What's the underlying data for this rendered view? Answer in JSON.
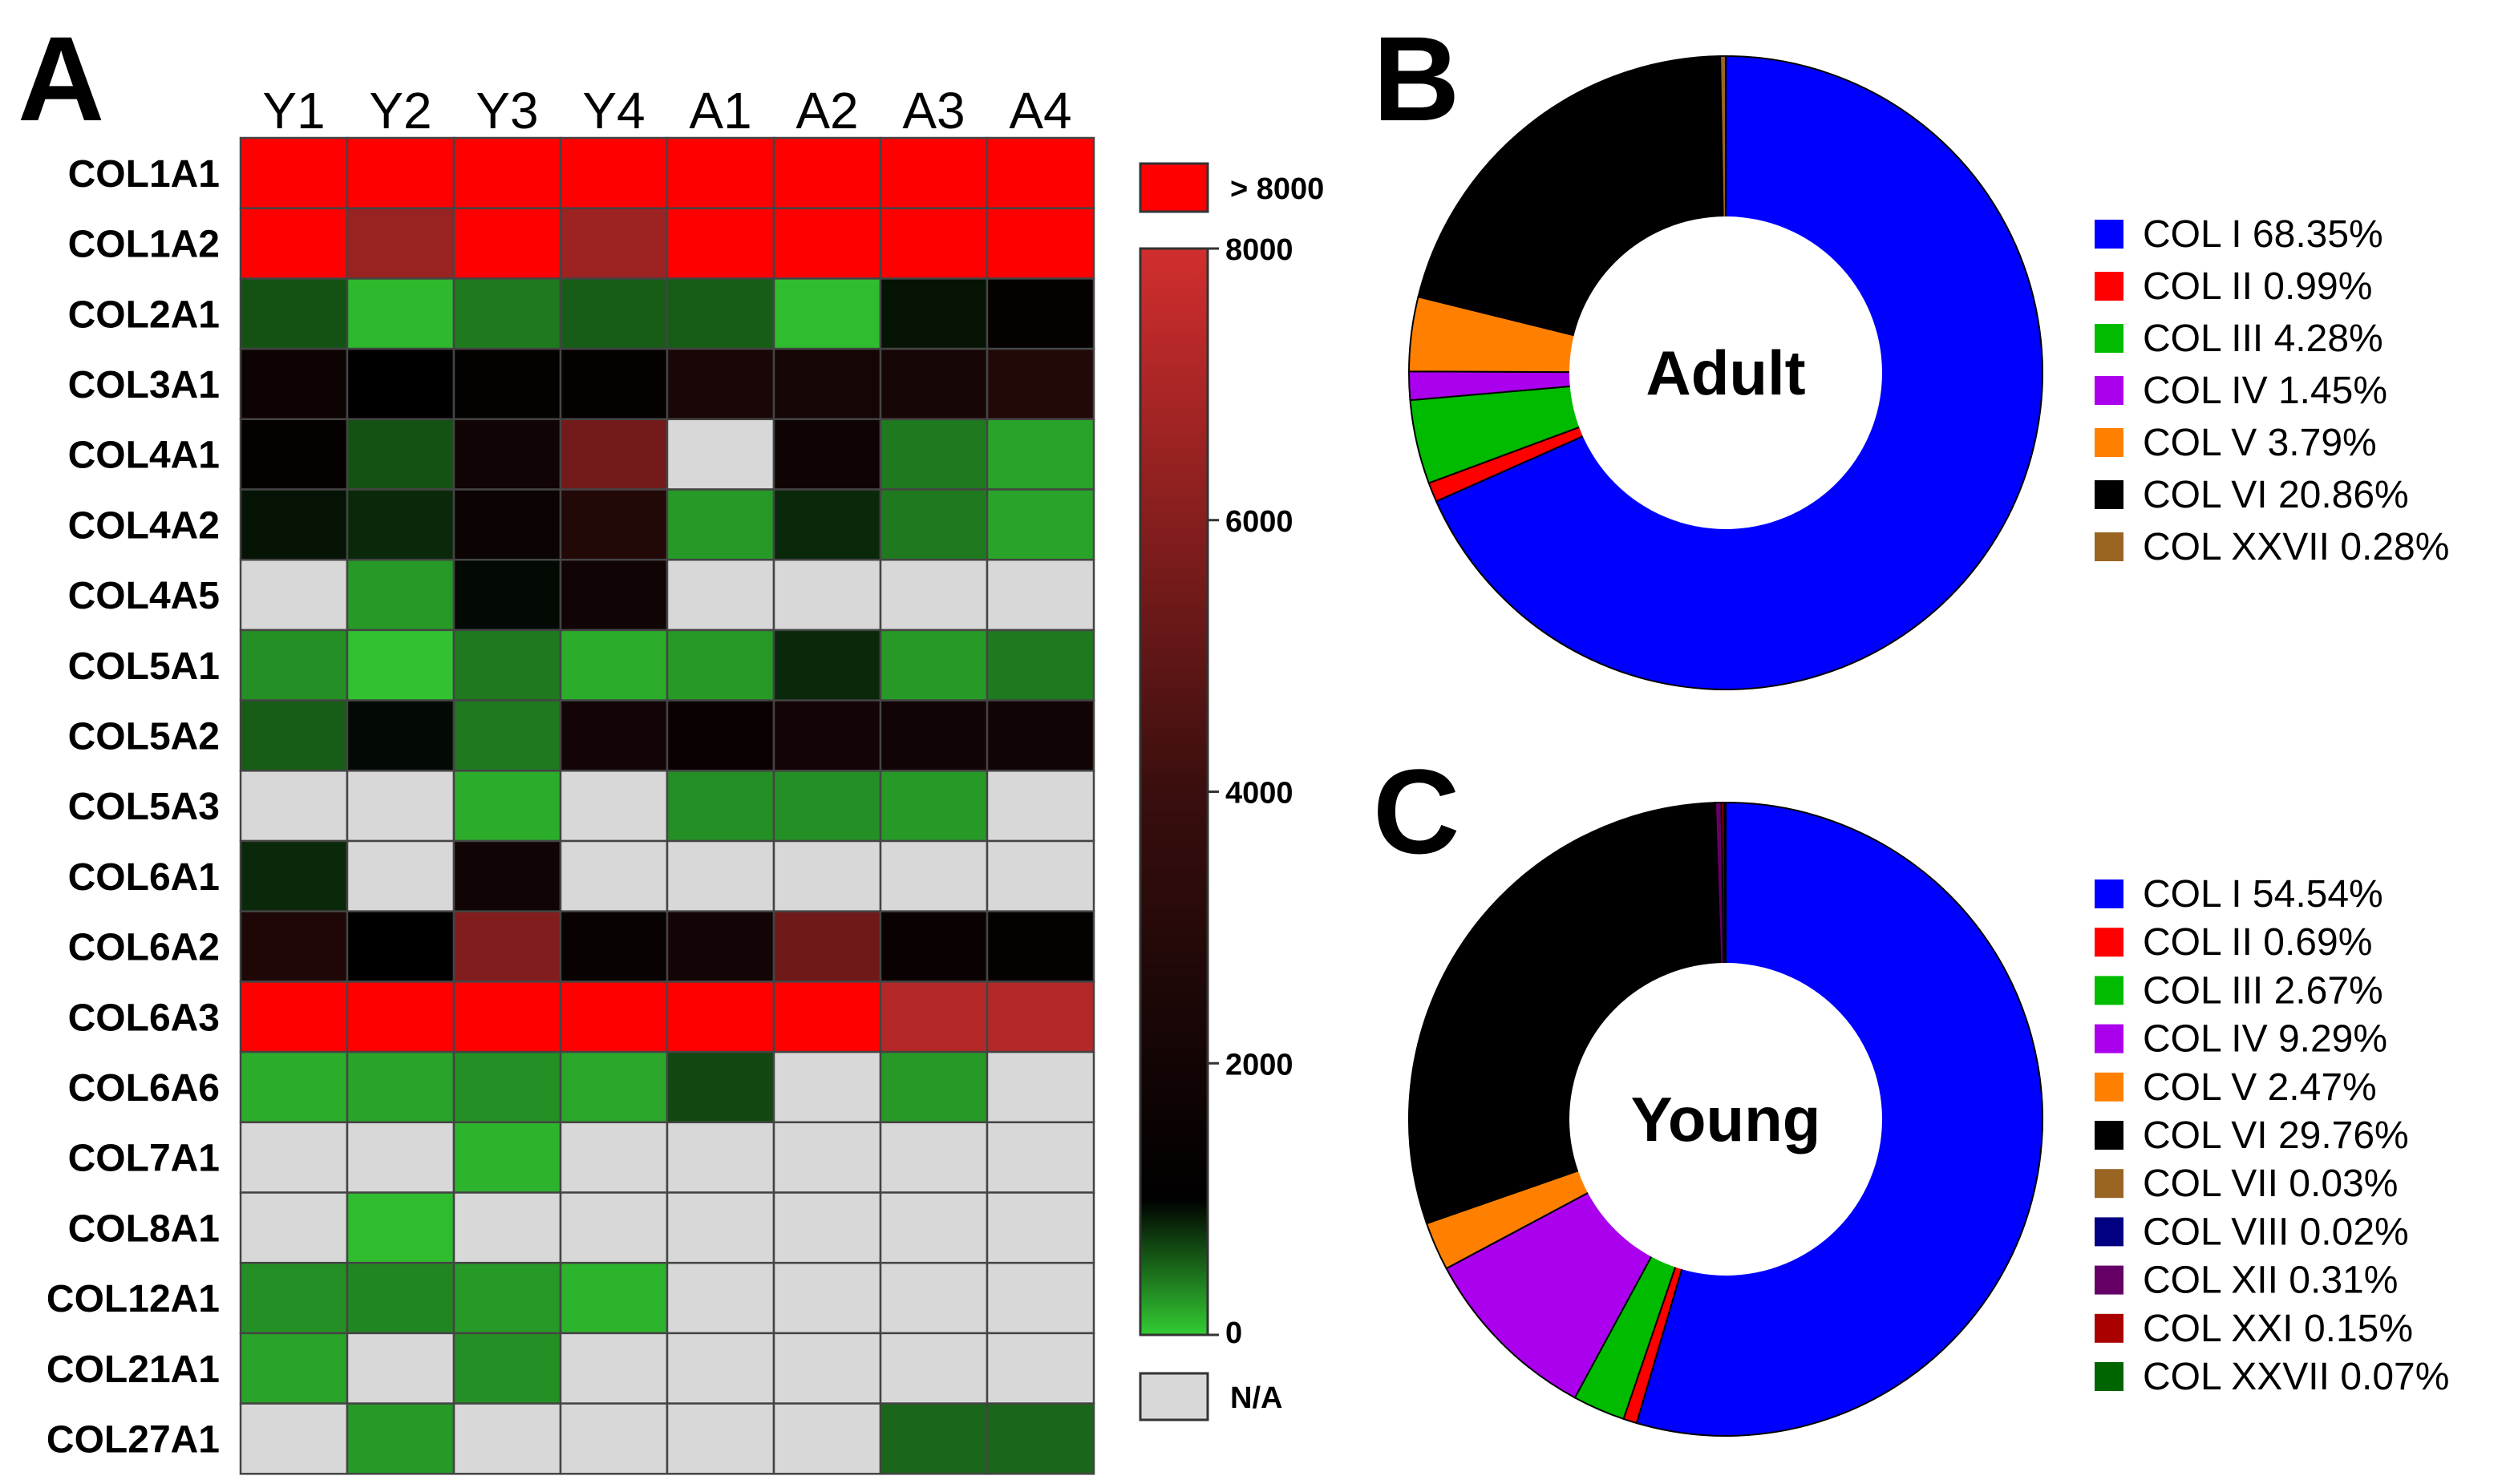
{
  "panels": {
    "a": "A",
    "b": "B",
    "c": "C"
  },
  "chart_data": [
    {
      "type": "heatmap",
      "panel": "A",
      "columns": [
        "Y1",
        "Y2",
        "Y3",
        "Y4",
        "A1",
        "A2",
        "A3",
        "A4"
      ],
      "rows": [
        "COL1A1",
        "COL1A2",
        "COL2A1",
        "COL3A1",
        "COL4A1",
        "COL4A2",
        "COL4A5",
        "COL5A1",
        "COL5A2",
        "COL5A3",
        "COL6A1",
        "COL6A2",
        "COL6A3",
        "COL6A6",
        "COL7A1",
        "COL8A1",
        "COL12A1",
        "COL21A1",
        "COL27A1"
      ],
      "values": [
        [
          9000,
          9000,
          9000,
          9000,
          9000,
          9000,
          9000,
          9000
        ],
        [
          9000,
          6500,
          9000,
          6600,
          9000,
          9000,
          9000,
          9000
        ],
        [
          600,
          100,
          400,
          550,
          550,
          80,
          900,
          1300
        ],
        [
          1700,
          1000,
          1200,
          1300,
          2300,
          2100,
          2200,
          2800
        ],
        [
          1300,
          600,
          1900,
          5500,
          null,
          1800,
          400,
          200
        ],
        [
          900,
          800,
          1600,
          2800,
          250,
          800,
          400,
          200
        ],
        [
          null,
          250,
          950,
          1900,
          null,
          null,
          null,
          null
        ],
        [
          300,
          50,
          400,
          150,
          250,
          800,
          250,
          400
        ],
        [
          550,
          950,
          400,
          2000,
          1500,
          2000,
          1900,
          1900
        ],
        [
          null,
          null,
          150,
          null,
          300,
          300,
          250,
          null
        ],
        [
          800,
          null,
          1900,
          null,
          null,
          null,
          null,
          null
        ],
        [
          2600,
          1000,
          5900,
          1400,
          2000,
          5400,
          1500,
          1200
        ],
        [
          9000,
          9000,
          9000,
          9000,
          9000,
          9000,
          7200,
          7200
        ],
        [
          150,
          200,
          300,
          180,
          650,
          null,
          250,
          null
        ],
        [
          null,
          null,
          120,
          null,
          null,
          null,
          null,
          null
        ],
        [
          null,
          80,
          null,
          null,
          null,
          null,
          null,
          null
        ],
        [
          300,
          350,
          250,
          120,
          null,
          null,
          null,
          null
        ],
        [
          200,
          null,
          300,
          null,
          null,
          null,
          null,
          null
        ],
        [
          null,
          250,
          null,
          null,
          null,
          null,
          500,
          500
        ]
      ],
      "colorbar": {
        "title_over": "> 8000",
        "ticks": [
          "8000",
          "6000",
          "4000",
          "2000",
          "0"
        ],
        "tick_values": [
          8000,
          6000,
          4000,
          2000,
          0
        ],
        "na_label": "N/A",
        "range": [
          0,
          8000
        ]
      },
      "colors": {
        "over": "#ff0000",
        "na": "#d8d8d8",
        "zero": "#33cc33",
        "mid": "#000000",
        "max": "#d22e2e",
        "grid": "#444444"
      }
    },
    {
      "type": "pie",
      "panel": "B",
      "center_label": "Adult",
      "slices": [
        {
          "label": "COL I",
          "pct_text": "68.35%",
          "value": 68.35,
          "color": "#0000ff"
        },
        {
          "label": "COL II",
          "pct_text": "0.99%",
          "value": 0.99,
          "color": "#ff0000"
        },
        {
          "label": "COL III",
          "pct_text": "4.28%",
          "value": 4.28,
          "color": "#00bb00"
        },
        {
          "label": "COL IV",
          "pct_text": "1.45%",
          "value": 1.45,
          "color": "#aa00ee"
        },
        {
          "label": "COL V",
          "pct_text": "3.79%",
          "value": 3.79,
          "color": "#ff8000"
        },
        {
          "label": "COL VI",
          "pct_text": "20.86%",
          "value": 20.86,
          "color": "#000000"
        },
        {
          "label": "COL XXVII",
          "pct_text": "0.28%",
          "value": 0.28,
          "color": "#9a6422"
        }
      ]
    },
    {
      "type": "pie",
      "panel": "C",
      "center_label": "Young",
      "slices": [
        {
          "label": "COL I",
          "pct_text": "54.54%",
          "value": 54.54,
          "color": "#0000ff"
        },
        {
          "label": "COL II",
          "pct_text": "0.69%",
          "value": 0.69,
          "color": "#ff0000"
        },
        {
          "label": "COL III",
          "pct_text": "2.67%",
          "value": 2.67,
          "color": "#00bb00"
        },
        {
          "label": "COL IV",
          "pct_text": "9.29%",
          "value": 9.29,
          "color": "#aa00ee"
        },
        {
          "label": "COL V",
          "pct_text": "2.47%",
          "value": 2.47,
          "color": "#ff8000"
        },
        {
          "label": "COL VI",
          "pct_text": "29.76%",
          "value": 29.76,
          "color": "#000000"
        },
        {
          "label": "COL VII",
          "pct_text": "0.03%",
          "value": 0.03,
          "color": "#9a6422"
        },
        {
          "label": "COL VIII",
          "pct_text": "0.02%",
          "value": 0.02,
          "color": "#000080"
        },
        {
          "label": "COL XII",
          "pct_text": "0.31%",
          "value": 0.31,
          "color": "#660066"
        },
        {
          "label": "COL XXI",
          "pct_text": "0.15%",
          "value": 0.15,
          "color": "#aa0000"
        },
        {
          "label": "COL XXVII",
          "pct_text": "0.07%",
          "value": 0.07,
          "color": "#006400"
        }
      ]
    }
  ]
}
